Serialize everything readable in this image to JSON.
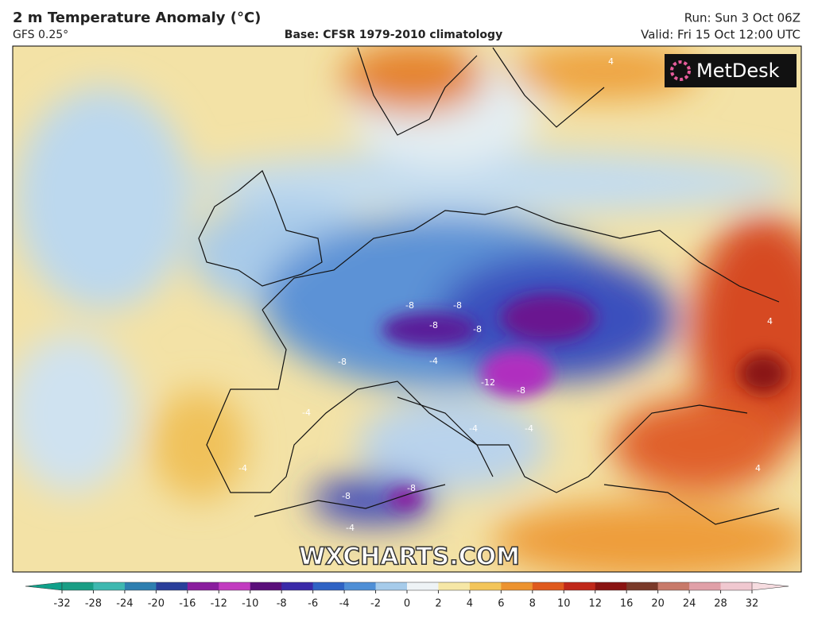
{
  "header": {
    "title": "2 m Temperature Anomaly (°C)",
    "model": "GFS 0.25°",
    "base": "Base: CFSR 1979-2010 climatology",
    "run": "Run: Sun 3 Oct 06Z",
    "valid": "Valid: Fri 15 Oct 12:00 UTC"
  },
  "map": {
    "logo": "MetDesk",
    "watermark": "WXCHARTS.COM",
    "contour_labels": [
      -8,
      -8,
      -8,
      -8,
      -8,
      -12,
      -8,
      -4,
      -4,
      -4,
      -8,
      -8,
      4,
      4,
      -4,
      -4,
      4,
      -4
    ]
  },
  "colorbar": {
    "ticks": [
      -32,
      -28,
      -24,
      -20,
      -16,
      -12,
      -10,
      -8,
      -6,
      -4,
      -2,
      0,
      2,
      4,
      6,
      8,
      10,
      12,
      16,
      20,
      24,
      28,
      32
    ],
    "colors": [
      "#1a9e85",
      "#3fb8b0",
      "#2e7fb0",
      "#2a3f9a",
      "#8a1e9e",
      "#c23cc0",
      "#5a0f7a",
      "#3a2aa8",
      "#2f63c4",
      "#4f8fd6",
      "#a6cbea",
      "#eef3f6",
      "#f6e7a6",
      "#f3c55a",
      "#ec9330",
      "#df5a1e",
      "#c0281a",
      "#8a1412",
      "#7a3a2a",
      "#c87a6a",
      "#e0a0a8",
      "#f0c8d0"
    ],
    "low_color": "#10a08a",
    "high_color": "#f6dce0"
  }
}
